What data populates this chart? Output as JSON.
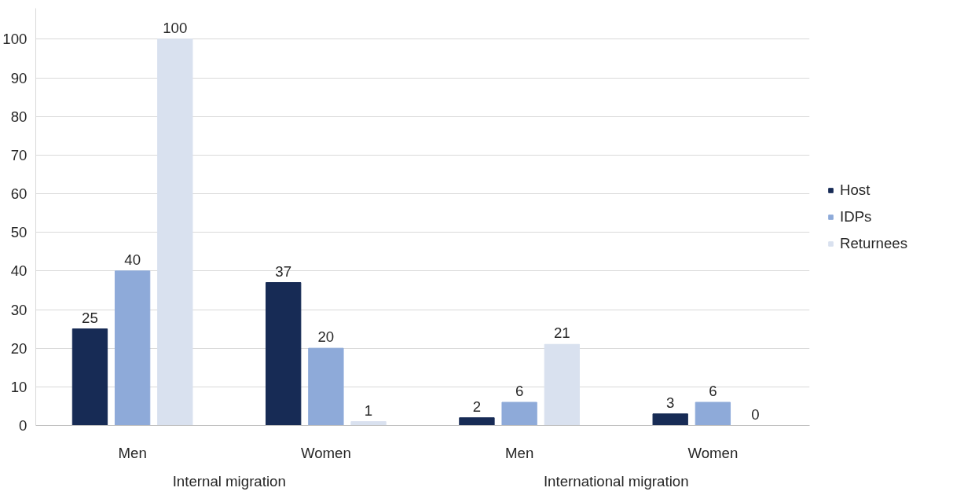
{
  "chart_data": {
    "type": "bar",
    "categories": [
      "Men",
      "Women",
      "Men",
      "Women"
    ],
    "series": [
      {
        "name": "Host",
        "color": "#172b55",
        "values": [
          25,
          37,
          2,
          3
        ]
      },
      {
        "name": "IDPs",
        "color": "#8eaad9",
        "values": [
          40,
          20,
          6,
          6
        ]
      },
      {
        "name": "Returnees",
        "color": "#d9e1ef",
        "values": [
          100,
          1,
          21,
          0
        ]
      }
    ],
    "annotations": [
      "Internal migration",
      "International migration"
    ],
    "ylim": [
      0,
      108
    ],
    "yticks": [
      0,
      10,
      20,
      30,
      40,
      50,
      60,
      70,
      80,
      90,
      100
    ],
    "grid": "y",
    "legend": "right",
    "data_labels": true
  }
}
